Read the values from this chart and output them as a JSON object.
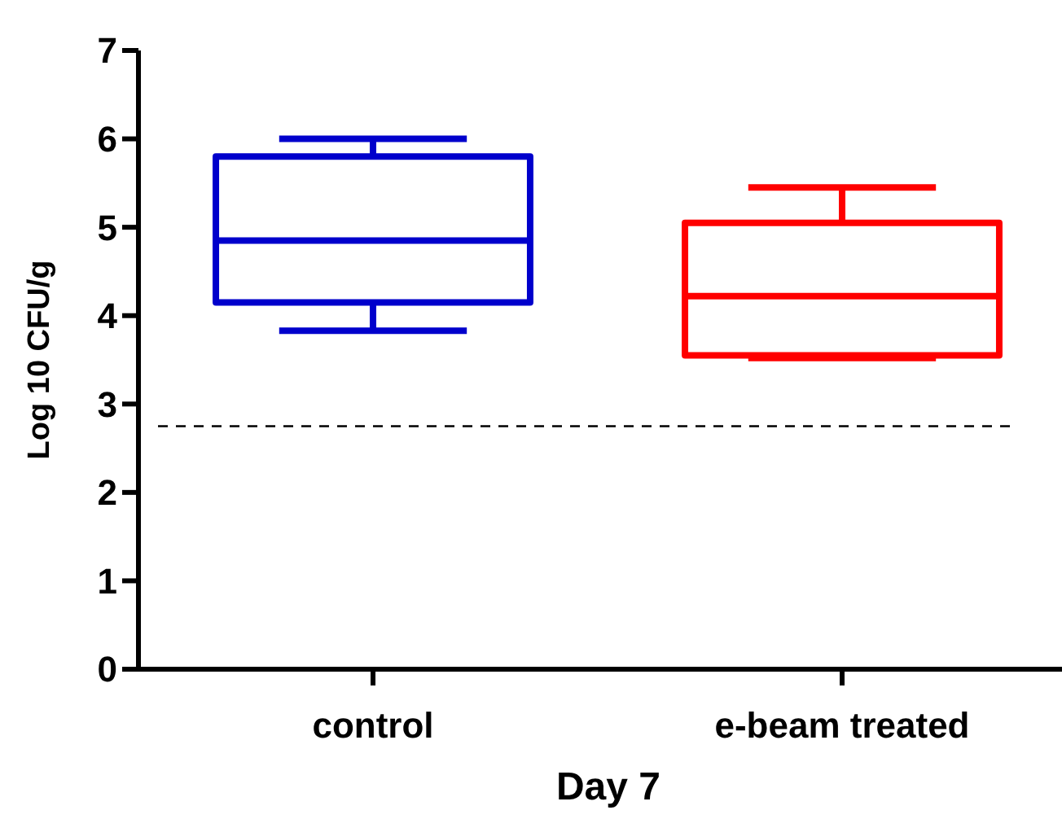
{
  "chart_data": {
    "type": "box",
    "xlabel": "Day 7",
    "ylabel": "Log 10 CFU/g",
    "categories": [
      "control",
      "e-beam treated"
    ],
    "colors": [
      "#0000cc",
      "#ff0000"
    ],
    "boxes": [
      {
        "low": 3.83,
        "q1": 4.15,
        "median": 4.85,
        "q3": 5.8,
        "high": 6.0
      },
      {
        "low": 3.52,
        "q1": 3.55,
        "median": 4.22,
        "q3": 5.05,
        "high": 5.45
      }
    ],
    "ylim": [
      0,
      7
    ],
    "yticks": [
      0,
      1,
      2,
      3,
      4,
      5,
      6,
      7
    ],
    "grid": false,
    "ref_lines": [
      {
        "axis": "y",
        "value": 2.75,
        "color": "#000000",
        "line_style": "dashed"
      }
    ]
  }
}
